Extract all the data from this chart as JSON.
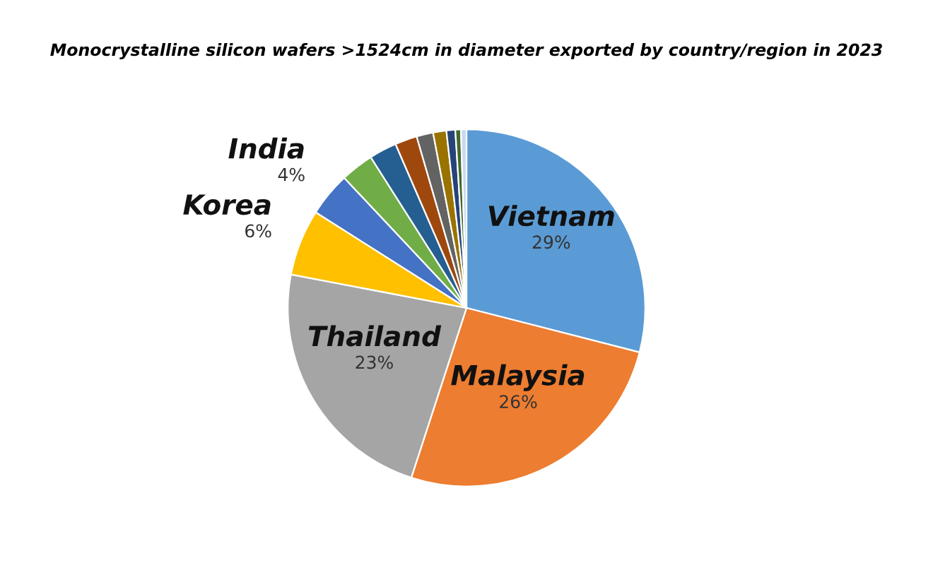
{
  "chart_data": {
    "type": "pie",
    "title": "Monocrystalline silicon wafers >1524cm in diameter exported by country/region in 2023",
    "categories": [
      "Vietnam",
      "Malaysia",
      "Thailand",
      "Korea",
      "India",
      null,
      null,
      null,
      null,
      null,
      null,
      null,
      null
    ],
    "values": [
      29,
      26,
      23,
      6,
      4,
      3,
      2.5,
      2,
      1.5,
      1.2,
      0.8,
      0.5,
      0.5
    ],
    "value_labels": [
      "29%",
      "26%",
      "23%",
      "6%",
      "4%",
      null,
      null,
      null,
      null,
      null,
      null,
      null,
      null
    ],
    "colors": [
      "#5b9bd5",
      "#ed7d31",
      "#a5a5a5",
      "#ffc000",
      "#4472c4",
      "#70ad47",
      "#255e91",
      "#9e480e",
      "#636363",
      "#997300",
      "#264478",
      "#43682b",
      "#c9d8ee"
    ],
    "legend": false
  }
}
